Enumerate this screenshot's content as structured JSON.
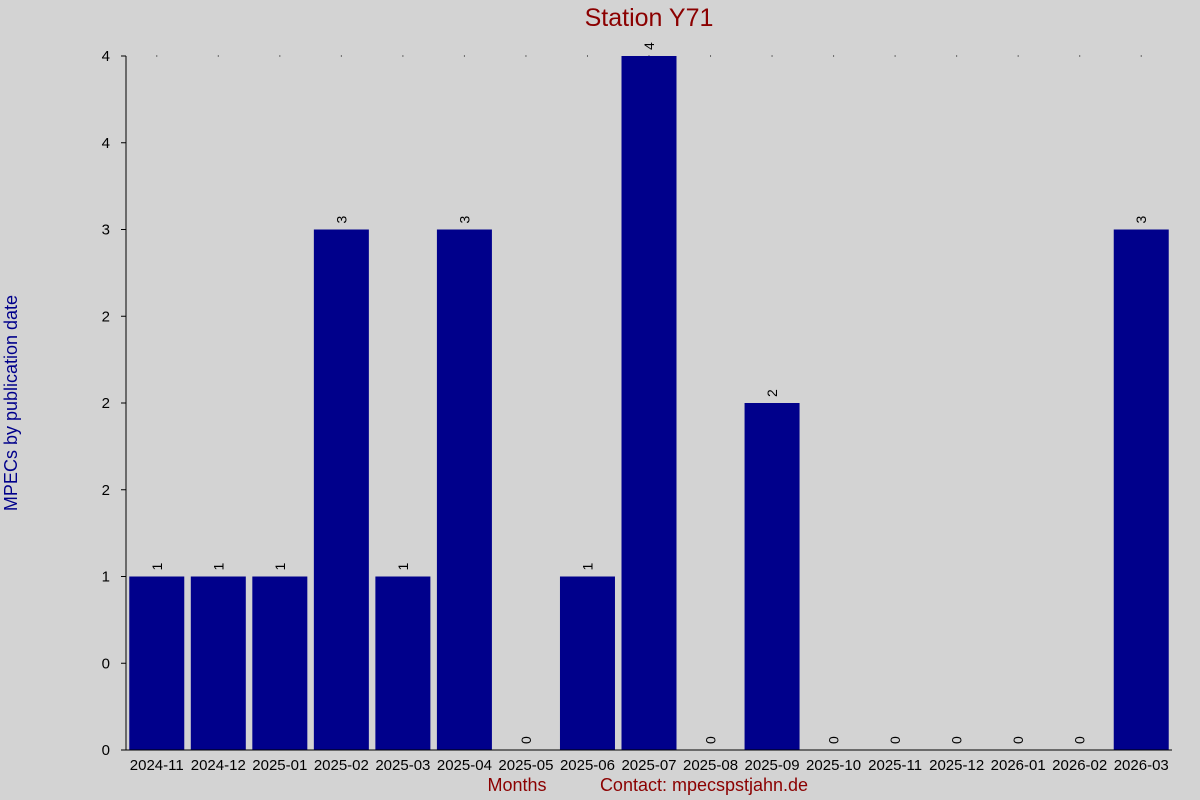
{
  "colors": {
    "background": "#d3d3d3",
    "bar": "#00008b",
    "title": "#8b0000",
    "ylabel": "#00008b",
    "footer": "#8b0000",
    "axis": "#000000"
  },
  "footer": {
    "xlabel": "Months",
    "contact": "Contact: mpecspstjahn.de"
  },
  "chart_data": {
    "type": "bar",
    "title": "Station Y71",
    "xlabel": "Months",
    "ylabel": "MPECs by publication date",
    "ylim": [
      0,
      4
    ],
    "ytick_values": [
      0,
      0.5,
      1,
      1.5,
      2,
      2.5,
      3,
      3.5,
      4
    ],
    "ytick_labels": [
      "0",
      "0",
      "1",
      "2",
      "2",
      "2",
      "3",
      "4",
      "4"
    ],
    "grid": false,
    "categories": [
      "2024-11",
      "2024-12",
      "2025-01",
      "2025-02",
      "2025-03",
      "2025-04",
      "2025-05",
      "2025-06",
      "2025-07",
      "2025-08",
      "2025-09",
      "2025-10",
      "2025-11",
      "2025-12",
      "2026-01",
      "2026-02",
      "2026-03"
    ],
    "values": [
      1,
      1,
      1,
      3,
      1,
      3,
      0,
      1,
      4,
      0,
      2,
      0,
      0,
      0,
      0,
      0,
      3
    ]
  }
}
